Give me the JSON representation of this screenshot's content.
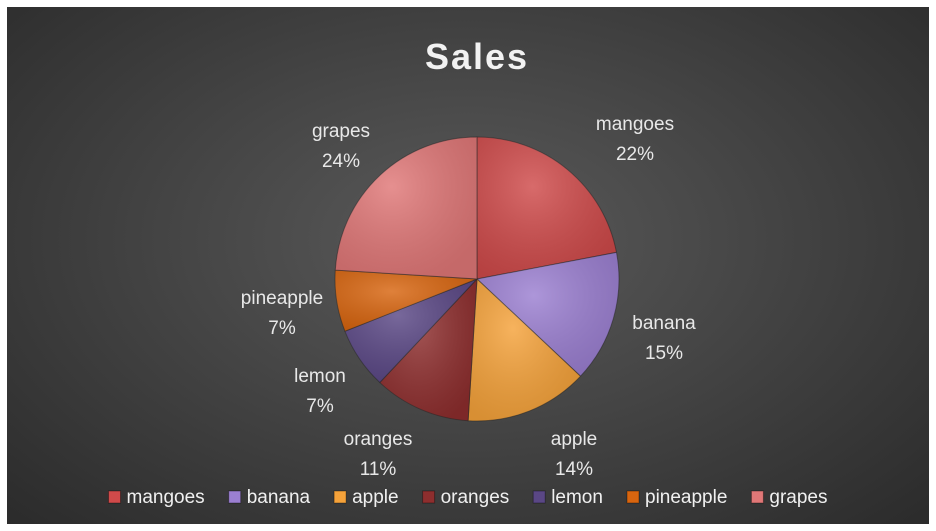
{
  "chart_data": {
    "type": "pie",
    "title": "Sales",
    "categories": [
      "mangoes",
      "banana",
      "apple",
      "oranges",
      "lemon",
      "pineapple",
      "grapes"
    ],
    "values": [
      22,
      15,
      14,
      11,
      7,
      7,
      24
    ],
    "value_labels": [
      "22%",
      "15%",
      "14%",
      "11%",
      "7%",
      "7%",
      "24%"
    ],
    "colors": [
      "#cf4a4a",
      "#9b7fd1",
      "#f5a23a",
      "#8e2e2e",
      "#5a4785",
      "#d8650f",
      "#e07777"
    ],
    "legend": {
      "position": "bottom",
      "entries": [
        "mangoes",
        "banana",
        "apple",
        "oranges",
        "lemon",
        "pineapple",
        "grapes"
      ]
    },
    "start_angle_deg": 0,
    "direction": "clockwise"
  }
}
